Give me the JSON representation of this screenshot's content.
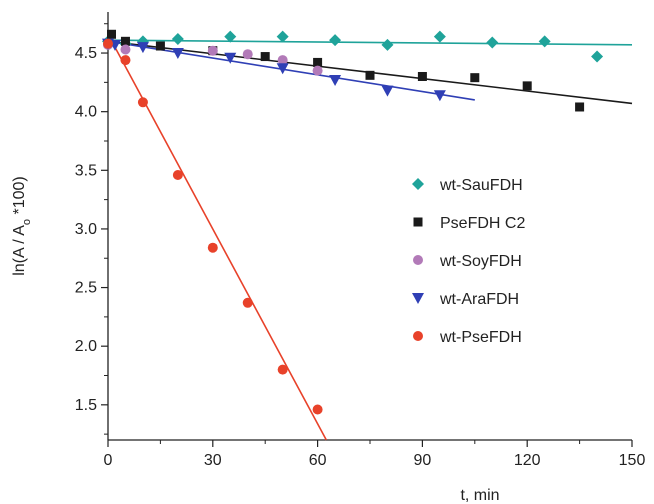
{
  "chart_data": {
    "type": "scatter",
    "title": "",
    "xlabel": "t, min",
    "ylabel": "ln(A / A",
    "ylabel_sub": "o",
    "ylabel_tail": " *100)",
    "xlim": [
      0,
      150
    ],
    "ylim": [
      1.2,
      4.85
    ],
    "xticks": [
      0,
      30,
      60,
      90,
      120,
      150
    ],
    "yticks": [
      1.5,
      2.0,
      2.5,
      3.0,
      3.5,
      4.0,
      4.5
    ],
    "xtick_labels": [
      "0",
      "30",
      "60",
      "90",
      "120",
      "150"
    ],
    "ytick_labels": [
      "1.5",
      "2.0",
      "2.5",
      "3.0",
      "3.5",
      "4.0",
      "4.5"
    ],
    "grid": false,
    "legend_position": "right-middle",
    "series": [
      {
        "name": "wt-SauFDH",
        "marker": "diamond",
        "color": "#1fa39a",
        "x": [
          0,
          5,
          10,
          20,
          35,
          50,
          65,
          80,
          95,
          110,
          125,
          140
        ],
        "y": [
          4.6,
          4.58,
          4.6,
          4.62,
          4.64,
          4.64,
          4.61,
          4.57,
          4.64,
          4.59,
          4.6,
          4.47
        ],
        "fit": [
          [
            0,
            4.61
          ],
          [
            150,
            4.57
          ]
        ]
      },
      {
        "name": "PseFDH C2",
        "marker": "square",
        "color": "#1a1a1a",
        "x": [
          1,
          5,
          15,
          30,
          45,
          60,
          75,
          90,
          105,
          120,
          135
        ],
        "y": [
          4.66,
          4.6,
          4.56,
          4.52,
          4.47,
          4.42,
          4.31,
          4.3,
          4.29,
          4.22,
          4.04
        ],
        "fit": [
          [
            0,
            4.6
          ],
          [
            150,
            4.07
          ]
        ]
      },
      {
        "name": "wt-SoyFDH",
        "marker": "circle",
        "color": "#b27ab8",
        "x": [
          0,
          5,
          30,
          40,
          50,
          60
        ],
        "y": [
          4.57,
          4.53,
          4.52,
          4.49,
          4.44,
          4.35
        ],
        "fit": null
      },
      {
        "name": "wt-AraFDH",
        "marker": "triangle-down",
        "color": "#2f3fb5",
        "x": [
          0,
          2,
          10,
          20,
          35,
          50,
          65,
          80,
          95
        ],
        "y": [
          4.58,
          4.57,
          4.55,
          4.5,
          4.46,
          4.37,
          4.27,
          4.18,
          4.14
        ],
        "fit": [
          [
            0,
            4.6
          ],
          [
            105,
            4.1
          ]
        ]
      },
      {
        "name": "wt-PseFDH",
        "marker": "circle",
        "color": "#e8422a",
        "x": [
          0,
          5,
          10,
          20,
          30,
          40,
          50,
          60
        ],
        "y": [
          4.58,
          4.44,
          4.08,
          3.46,
          2.84,
          2.37,
          1.8,
          1.46
        ],
        "fit": [
          [
            0,
            4.66
          ],
          [
            62.5,
            1.2
          ]
        ]
      }
    ]
  }
}
